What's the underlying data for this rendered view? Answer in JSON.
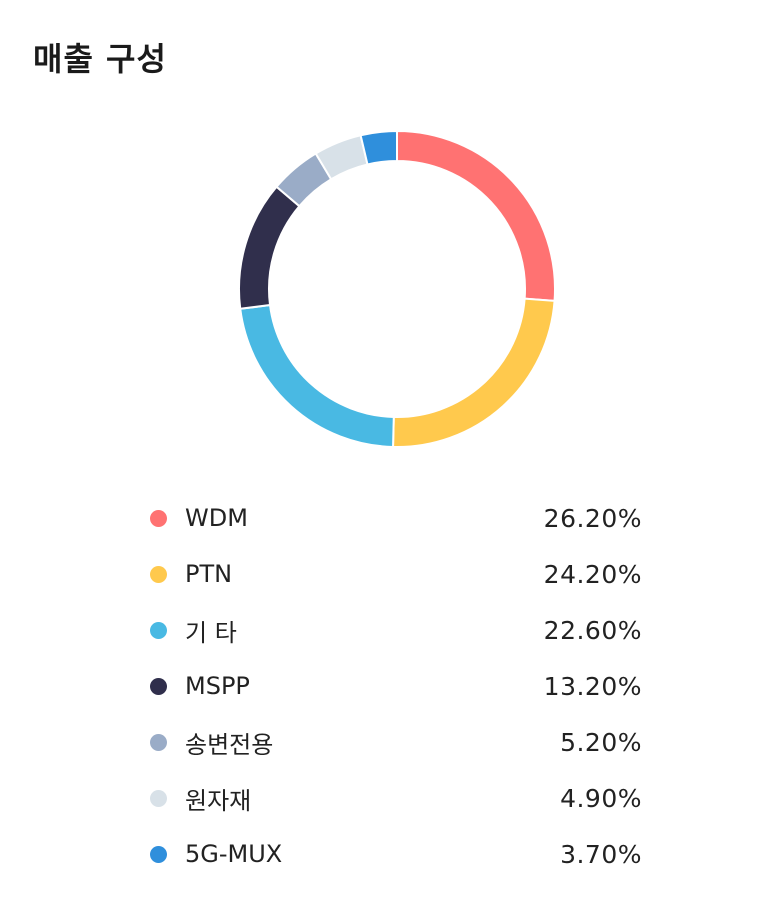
{
  "page": {
    "title": "매출 구성"
  },
  "chart_data": {
    "type": "pie",
    "donut": true,
    "title": "매출 구성",
    "categories": [
      "WDM",
      "PTN",
      "기 타",
      "MSPP",
      "송변전용",
      "원자재",
      "5G-MUX"
    ],
    "values": [
      26.2,
      24.2,
      22.6,
      13.2,
      5.2,
      4.9,
      3.7
    ],
    "value_labels": [
      "26.20%",
      "24.20%",
      "22.60%",
      "13.20%",
      "5.20%",
      "4.90%",
      "3.70%"
    ],
    "unit": "%",
    "colors": [
      "#ff7272",
      "#ffc94d",
      "#49b9e3",
      "#302f4c",
      "#9aacc7",
      "#d8e1e8",
      "#2f8fdc"
    ],
    "legend_position": "bottom"
  }
}
